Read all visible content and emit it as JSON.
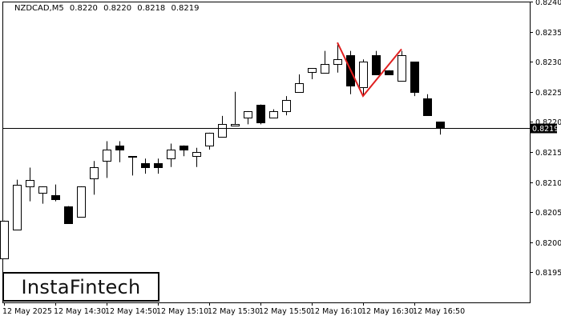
{
  "header": {
    "symbol": "NZDCAD,M5",
    "open": "0.8220",
    "high": "0.8220",
    "low": "0.8218",
    "close": "0.8219"
  },
  "logo": {
    "text": "InstaFintech"
  },
  "current_price_label": "0.8219",
  "colors": {
    "bull": "#ffffff",
    "bear": "#000000",
    "pattern": "#e02020",
    "background": "#ffffff"
  },
  "chart_data": {
    "type": "candlestick",
    "symbol": "NZDCAD",
    "timeframe": "M5",
    "y_range": [
      0.819,
      0.824
    ],
    "y_ticks": [
      "0.8195",
      "0.8200",
      "0.8205",
      "0.8210",
      "0.8215",
      "0.8220",
      "0.8225",
      "0.8230",
      "0.8235",
      "0.8240"
    ],
    "x_tick_labels": [
      "12 May 2025",
      "12 May 14:30",
      "12 May 14:50",
      "12 May 15:10",
      "12 May 15:30",
      "12 May 15:50",
      "12 May 16:10",
      "12 May 16:30",
      "12 May 16:50"
    ],
    "current_price": 0.8219,
    "candles": [
      {
        "o": 0.81974,
        "h": 0.82036,
        "l": 0.81974,
        "c": 0.82036
      },
      {
        "o": 0.82022,
        "h": 0.82104,
        "l": 0.82022,
        "c": 0.82096
      },
      {
        "o": 0.82093,
        "h": 0.82124,
        "l": 0.82068,
        "c": 0.82104
      },
      {
        "o": 0.82082,
        "h": 0.82093,
        "l": 0.82064,
        "c": 0.82093
      },
      {
        "o": 0.82078,
        "h": 0.82096,
        "l": 0.82068,
        "c": 0.82071
      },
      {
        "o": 0.8206,
        "h": 0.8206,
        "l": 0.82032,
        "c": 0.82032
      },
      {
        "o": 0.82043,
        "h": 0.82093,
        "l": 0.82043,
        "c": 0.82093
      },
      {
        "o": 0.82107,
        "h": 0.82135,
        "l": 0.82079,
        "c": 0.82125
      },
      {
        "o": 0.82135,
        "h": 0.82168,
        "l": 0.82107,
        "c": 0.82154
      },
      {
        "o": 0.82161,
        "h": 0.82168,
        "l": 0.82133,
        "c": 0.82154
      },
      {
        "o": 0.82143,
        "h": 0.82143,
        "l": 0.82111,
        "c": 0.82143
      },
      {
        "o": 0.82132,
        "h": 0.82139,
        "l": 0.82114,
        "c": 0.82125
      },
      {
        "o": 0.82132,
        "h": 0.82139,
        "l": 0.82114,
        "c": 0.82125
      },
      {
        "o": 0.82139,
        "h": 0.82164,
        "l": 0.82125,
        "c": 0.82154
      },
      {
        "o": 0.82161,
        "h": 0.82161,
        "l": 0.82143,
        "c": 0.82154
      },
      {
        "o": 0.82143,
        "h": 0.82157,
        "l": 0.82125,
        "c": 0.8215
      },
      {
        "o": 0.82161,
        "h": 0.82182,
        "l": 0.82154,
        "c": 0.82182
      },
      {
        "o": 0.82175,
        "h": 0.8221,
        "l": 0.82175,
        "c": 0.82196
      },
      {
        "o": 0.82193,
        "h": 0.8225,
        "l": 0.82193,
        "c": 0.82196
      },
      {
        "o": 0.82207,
        "h": 0.82218,
        "l": 0.82196,
        "c": 0.82218
      },
      {
        "o": 0.82229,
        "h": 0.82229,
        "l": 0.82196,
        "c": 0.822
      },
      {
        "o": 0.82207,
        "h": 0.82221,
        "l": 0.82207,
        "c": 0.82218
      },
      {
        "o": 0.82218,
        "h": 0.82243,
        "l": 0.82211,
        "c": 0.82236
      },
      {
        "o": 0.8225,
        "h": 0.82279,
        "l": 0.8225,
        "c": 0.82264
      },
      {
        "o": 0.82282,
        "h": 0.82289,
        "l": 0.82271,
        "c": 0.82289
      },
      {
        "o": 0.82282,
        "h": 0.82318,
        "l": 0.82282,
        "c": 0.82296
      },
      {
        "o": 0.82296,
        "h": 0.82332,
        "l": 0.82282,
        "c": 0.82304
      },
      {
        "o": 0.82311,
        "h": 0.82318,
        "l": 0.82246,
        "c": 0.82261
      },
      {
        "o": 0.82257,
        "h": 0.82304,
        "l": 0.82243,
        "c": 0.823
      },
      {
        "o": 0.82311,
        "h": 0.82318,
        "l": 0.82279,
        "c": 0.82279
      },
      {
        "o": 0.82286,
        "h": 0.82286,
        "l": 0.82279,
        "c": 0.82279
      },
      {
        "o": 0.82268,
        "h": 0.82318,
        "l": 0.82268,
        "c": 0.82311
      },
      {
        "o": 0.823,
        "h": 0.823,
        "l": 0.82243,
        "c": 0.8225
      },
      {
        "o": 0.82239,
        "h": 0.82246,
        "l": 0.82211,
        "c": 0.82211
      },
      {
        "o": 0.822,
        "h": 0.822,
        "l": 0.82179,
        "c": 0.82189
      }
    ],
    "pattern": {
      "name": "double-top",
      "points": [
        {
          "i": 26,
          "p": 0.82332
        },
        {
          "i": 28,
          "p": 0.82243
        },
        {
          "i": 31,
          "p": 0.82321
        }
      ]
    }
  }
}
